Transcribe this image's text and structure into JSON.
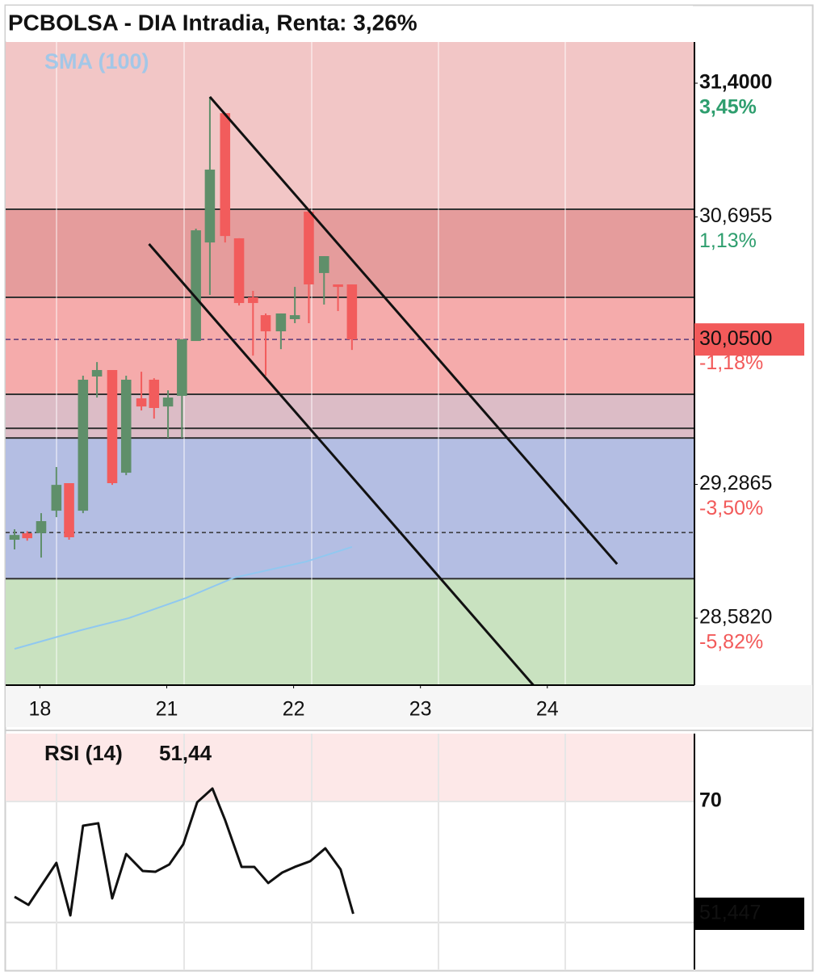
{
  "chart_data": [
    {
      "type": "candlestick",
      "title": "PCBOLSA - DIA Intradia, Renta: 3,26%",
      "x": [
        -0.2,
        -0.1,
        0.01,
        0.13,
        0.23,
        0.34,
        0.45,
        0.57,
        0.68,
        0.8,
        0.9,
        1.01,
        1.12,
        1.23,
        1.34,
        1.46,
        1.57,
        1.68,
        1.78,
        1.9,
        2.01,
        2.12,
        2.24,
        2.35,
        2.46
      ],
      "open": [
        28.995,
        29.029,
        29.03,
        29.148,
        29.293,
        29.148,
        29.855,
        29.889,
        29.348,
        29.74,
        29.838,
        29.697,
        29.753,
        30.042,
        30.561,
        31.242,
        30.583,
        30.272,
        30.178,
        30.093,
        30.157,
        30.723,
        30.4,
        30.34,
        30.34
      ],
      "high": [
        29.05,
        29.04,
        29.135,
        29.378,
        29.293,
        29.859,
        29.931,
        29.889,
        29.859,
        29.88,
        29.846,
        29.782,
        30.051,
        30.634,
        31.328,
        31.242,
        30.583,
        30.306,
        30.187,
        30.187,
        30.327,
        30.74,
        30.489,
        30.34,
        30.34
      ],
      "low": [
        28.944,
        28.99,
        28.901,
        29.114,
        28.995,
        29.135,
        29.744,
        29.284,
        29.335,
        29.676,
        29.633,
        29.531,
        29.531,
        30.042,
        30.285,
        30.561,
        30.229,
        29.965,
        29.859,
        29.999,
        30.136,
        30.136,
        30.234,
        30.2,
        29.995
      ],
      "close": [
        29.02,
        29.003,
        29.093,
        29.284,
        29.008,
        29.838,
        29.889,
        29.293,
        29.838,
        29.697,
        29.689,
        29.744,
        30.051,
        30.625,
        30.945,
        30.595,
        30.242,
        30.242,
        30.093,
        30.187,
        30.178,
        30.34,
        30.489,
        30.327,
        30.05
      ],
      "up_color": "#5f8f6a",
      "down_color": "#f25c5c",
      "xlim": [
        -0.27,
        5.16
      ],
      "xticks": [
        {
          "value": 0,
          "label": "18"
        },
        {
          "value": 1,
          "label": "21"
        },
        {
          "value": 2,
          "label": "22"
        },
        {
          "value": 3,
          "label": "23"
        },
        {
          "value": 4,
          "label": "24"
        }
      ],
      "ylim": [
        28.229,
        31.617
      ],
      "yticks": [
        {
          "value": 31.4,
          "label": "31,4000"
        },
        {
          "value": 30.6955,
          "label": "30,6955"
        },
        {
          "value": 29.2865,
          "label": "29,2865"
        },
        {
          "value": 28.582,
          "label": "28,5820"
        }
      ],
      "ytick_changes": [
        "3,45%",
        "1,13%",
        "-3,50%",
        "-5,82%"
      ],
      "ytick_change_colors": [
        "#2e9e6e",
        "#2e9e6e",
        "#f25a5a",
        "#f25a5a"
      ],
      "last": {
        "value": 30.05,
        "label": "30,0500",
        "change": "-1,18%",
        "color": "#f25a5a"
      },
      "zones": [
        {
          "from": 30.736,
          "to": 31.617,
          "color": "#f2c6c6"
        },
        {
          "from": 30.272,
          "to": 30.736,
          "color": "#e59c9c"
        },
        {
          "from": 29.761,
          "to": 30.272,
          "color": "#f5abab"
        },
        {
          "from": 29.531,
          "to": 29.761,
          "color": "#dcbcc6"
        },
        {
          "from": 28.79,
          "to": 29.531,
          "color": "#b4bee3"
        },
        {
          "from": 28.229,
          "to": 28.79,
          "color": "#c9e2c0"
        }
      ],
      "levels": [
        {
          "value": 30.736,
          "dashed": false
        },
        {
          "value": 30.272,
          "dashed": false
        },
        {
          "value": 29.761,
          "dashed": false
        },
        {
          "value": 29.582,
          "dashed": false
        },
        {
          "value": 29.531,
          "dashed": false
        },
        {
          "value": 29.033,
          "dashed": true
        },
        {
          "value": 28.79,
          "dashed": false
        }
      ],
      "trendlines": [
        {
          "x": [
            1.34,
            4.55
          ],
          "y": [
            31.328,
            28.867
          ]
        },
        {
          "x": [
            0.86,
            3.89
          ],
          "y": [
            30.553,
            28.229
          ]
        }
      ],
      "overlay": {
        "name": "SMA (100)",
        "color": "#90c8f0",
        "x": [
          -0.2,
          0.32,
          0.7,
          1.15,
          1.53,
          2.1,
          2.46
        ],
        "values": [
          28.42,
          28.518,
          28.582,
          28.688,
          28.795,
          28.88,
          28.957
        ]
      }
    },
    {
      "type": "line",
      "title": "RSI (14)",
      "legend_value": {
        "value": 51.44,
        "label": "51,44"
      },
      "x": [
        -0.2,
        -0.09,
        0.13,
        0.24,
        0.34,
        0.46,
        0.57,
        0.68,
        0.81,
        0.91,
        1.02,
        1.13,
        1.24,
        1.36,
        1.46,
        1.59,
        1.69,
        1.8,
        1.91,
        2.01,
        2.13,
        2.25,
        2.37,
        2.47
      ],
      "values": [
        54.25,
        52.91,
        59.85,
        51.17,
        65.99,
        66.4,
        53.98,
        61.32,
        58.52,
        58.38,
        59.59,
        62.92,
        69.87,
        72.14,
        66.93,
        59.19,
        59.19,
        56.52,
        58.25,
        59.19,
        60.12,
        62.26,
        58.79,
        51.44
      ],
      "color": "#111111",
      "xlim": [
        -0.27,
        5.16
      ],
      "ylim": [
        42.23,
        81.21
      ],
      "yticks": [
        70
      ],
      "ytick_color": "#ff1a1a",
      "zones": [
        {
          "from": 70,
          "to": 81.21,
          "color": "#fde8e8"
        }
      ],
      "levels": [
        50
      ],
      "last": {
        "value": 51.447,
        "label": "51,447"
      }
    }
  ]
}
